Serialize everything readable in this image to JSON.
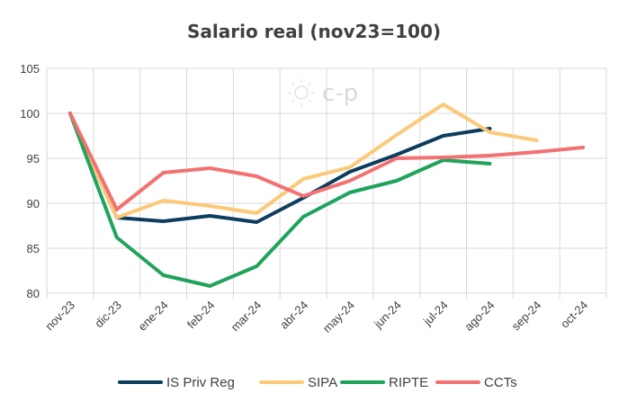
{
  "chart_data": {
    "type": "line",
    "title": "Salario real (nov23=100)",
    "xlabel": "",
    "ylabel": "",
    "ylim": [
      80,
      105
    ],
    "yticks": [
      80,
      85,
      90,
      95,
      100,
      105
    ],
    "grid": true,
    "legend_position": "bottom",
    "categories": [
      "nov-23",
      "dic-23",
      "ene-24",
      "feb-24",
      "mar-24",
      "abr-24",
      "may-24",
      "jun-24",
      "jul-24",
      "ago-24",
      "sep-24",
      "oct-24"
    ],
    "series": [
      {
        "name": "IS Priv Reg",
        "color": "#0c3d5e",
        "values": [
          100,
          88.4,
          88.0,
          88.6,
          87.9,
          90.6,
          93.5,
          95.4,
          97.5,
          98.3,
          null,
          null
        ]
      },
      {
        "name": "SIPA",
        "color": "#fcc979",
        "values": [
          100,
          88.4,
          90.3,
          89.7,
          88.9,
          92.7,
          94.0,
          97.6,
          101.0,
          97.9,
          97.0,
          null
        ]
      },
      {
        "name": "RIPTE",
        "color": "#20a35a",
        "values": [
          100,
          86.2,
          82.0,
          80.8,
          83.0,
          88.5,
          91.2,
          92.5,
          94.8,
          94.4,
          null,
          null
        ]
      },
      {
        "name": "CCTs",
        "color": "#f27172",
        "values": [
          100,
          89.3,
          93.4,
          93.9,
          93.0,
          90.8,
          92.5,
          95.0,
          95.1,
          95.3,
          95.7,
          96.2
        ]
      }
    ]
  },
  "watermark": {
    "text": "c-p",
    "color": "#d9d9d9"
  }
}
